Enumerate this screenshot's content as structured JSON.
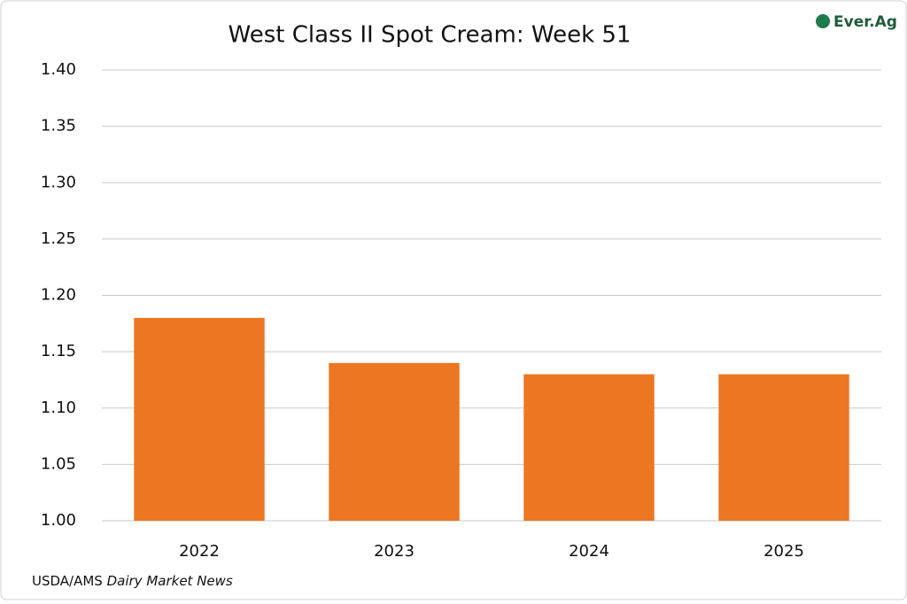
{
  "chart_data": {
    "type": "bar",
    "title": "West Class II Spot Cream: Week 51",
    "categories": [
      "2022",
      "2023",
      "2024",
      "2025"
    ],
    "values": [
      1.18,
      1.14,
      1.13,
      1.13
    ],
    "color": "#ec7621",
    "ylim": [
      1,
      1.4
    ],
    "yticks": [
      {
        "value": 1,
        "label": "1.00"
      },
      {
        "value": 1.05,
        "label": "1.05"
      },
      {
        "value": 1.1,
        "label": "1.10"
      },
      {
        "value": 1.15,
        "label": "1.15"
      },
      {
        "value": 1.2,
        "label": "1.20"
      },
      {
        "value": 1.25,
        "label": "1.25"
      },
      {
        "value": 1.3,
        "label": "1.30"
      },
      {
        "value": 1.35,
        "label": "1.35"
      },
      {
        "value": 1.4,
        "label": "1.40"
      }
    ],
    "grid": true,
    "source_prefix": "USDA/AMS",
    "source_title": "Dairy Market News",
    "logo": "Ever.Ag"
  }
}
